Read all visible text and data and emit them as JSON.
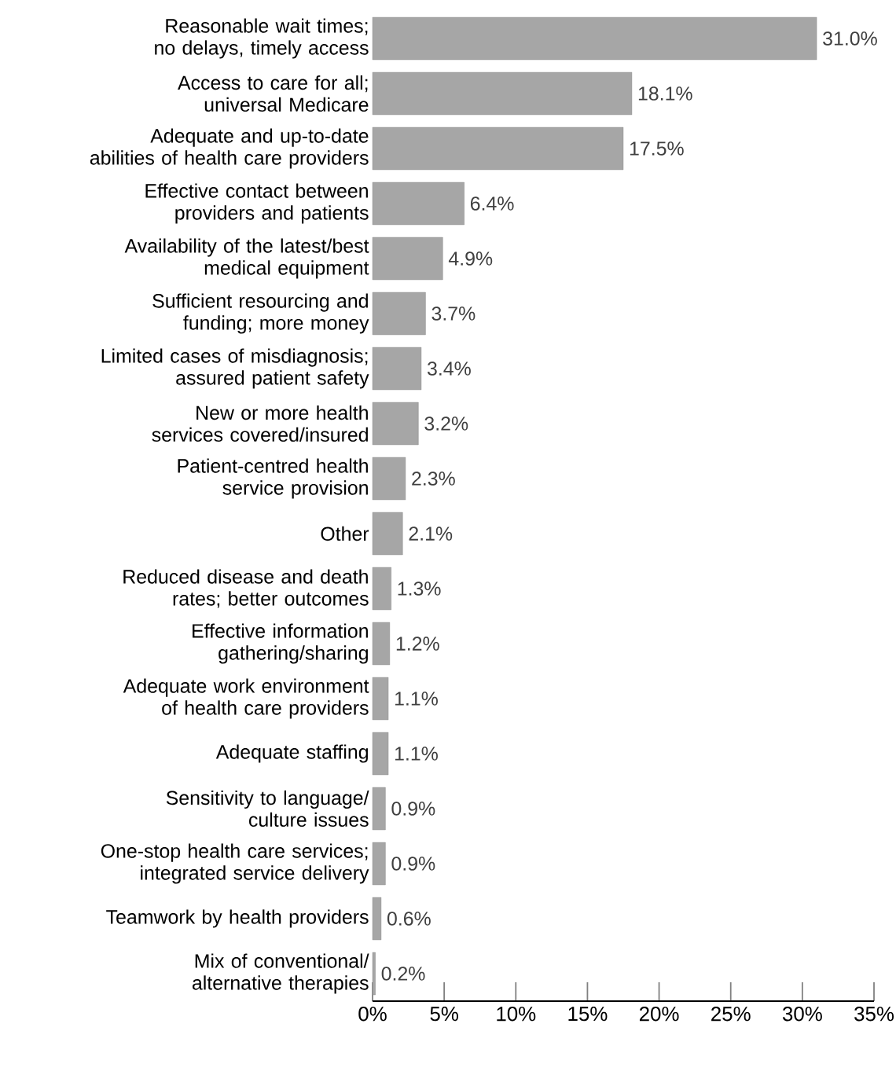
{
  "chart_data": {
    "type": "bar",
    "orientation": "horizontal",
    "categories": [
      "Reasonable wait times; no delays, timely access",
      "Access to care for all; universal Medicare",
      "Adequate and up-to-date abilities of health care providers",
      "Effective contact between providers and patients",
      "Availability of the latest/best medical equipment",
      "Sufficient resourcing and funding; more money",
      "Limited cases of misdiagnosis; assured patient safety",
      "New or more health services covered/insured",
      "Patient-centred health service provision",
      "Other",
      "Reduced disease and death rates; better outcomes",
      "Effective information gathering/sharing",
      "Adequate work environment of health care providers",
      "Adequate staffing",
      "Sensitivity to language/ culture issues",
      "One-stop health care services; integrated service delivery",
      "Teamwork by health providers",
      "Mix of conventional/ alternative therapies"
    ],
    "values": [
      31.0,
      18.1,
      17.5,
      6.4,
      4.9,
      3.7,
      3.4,
      3.2,
      2.3,
      2.1,
      1.3,
      1.2,
      1.1,
      1.1,
      0.9,
      0.9,
      0.6,
      0.2
    ],
    "value_labels": [
      "31.0%",
      "18.1%",
      "17.5%",
      "6.4%",
      "4.9%",
      "3.7%",
      "3.4%",
      "3.2%",
      "2.3%",
      "2.1%",
      "1.3%",
      "1.2%",
      "1.1%",
      "1.1%",
      "0.9%",
      "0.9%",
      "0.6%",
      "0.2%"
    ],
    "color": "#a6a6a6",
    "xlim": [
      0,
      35
    ],
    "xticks": [
      {
        "value": 0,
        "label": "0%"
      },
      {
        "value": 5,
        "label": "5%"
      },
      {
        "value": 10,
        "label": "10%"
      },
      {
        "value": 15,
        "label": "15%"
      },
      {
        "value": 20,
        "label": "20%"
      },
      {
        "value": 25,
        "label": "25%"
      },
      {
        "value": 30,
        "label": "30%"
      },
      {
        "value": 35,
        "label": "35%"
      }
    ]
  }
}
